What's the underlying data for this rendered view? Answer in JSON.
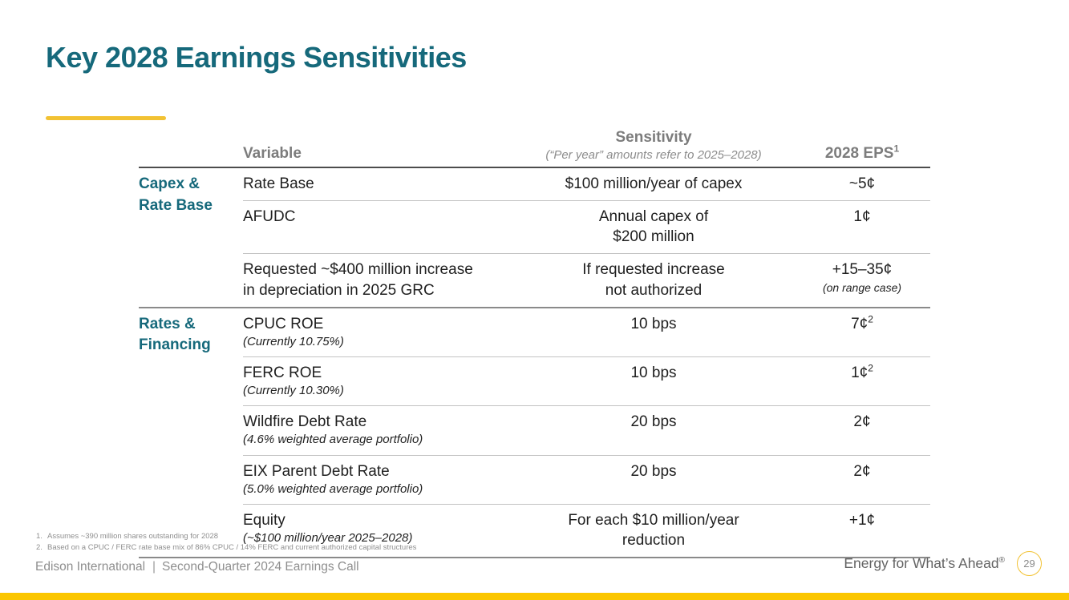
{
  "slide": {
    "title": "Key 2028 Earnings Sensitivities",
    "colors": {
      "teal": "#16697B",
      "gold": "#FBC600",
      "accent": "#F2C233"
    }
  },
  "table": {
    "header": {
      "variable": "Variable",
      "sensitivity": "Sensitivity",
      "sensitivity_note": "(“Per year” amounts refer to 2025–2028)",
      "eps": "2028 EPS",
      "eps_sup": "1"
    },
    "groups": [
      {
        "lines": [
          "Capex &",
          "Rate Base"
        ]
      },
      {
        "lines": [
          "Rates &",
          "Financing"
        ]
      }
    ],
    "rows": [
      {
        "variable_lines": [
          "Rate Base"
        ],
        "note": "",
        "sensitivity_lines": [
          "$100 million/year of capex"
        ],
        "eps": "~5¢",
        "eps_sup": "",
        "eps_note": ""
      },
      {
        "variable_lines": [
          "AFUDC"
        ],
        "note": "",
        "sensitivity_lines": [
          "Annual capex of",
          "$200 million"
        ],
        "eps": "1¢",
        "eps_sup": "",
        "eps_note": ""
      },
      {
        "variable_lines": [
          "Requested ~$400 million increase",
          "in depreciation in 2025 GRC"
        ],
        "note": "",
        "sensitivity_lines": [
          "If requested increase",
          "not authorized"
        ],
        "eps": "+15–35¢",
        "eps_sup": "",
        "eps_note": "(on range case)"
      },
      {
        "variable_lines": [
          "CPUC ROE"
        ],
        "note": "(Currently 10.75%)",
        "sensitivity_lines": [
          "10 bps"
        ],
        "eps": "7¢",
        "eps_sup": "2",
        "eps_note": ""
      },
      {
        "variable_lines": [
          "FERC ROE"
        ],
        "note": "(Currently 10.30%)",
        "sensitivity_lines": [
          "10 bps"
        ],
        "eps": "1¢",
        "eps_sup": "2",
        "eps_note": ""
      },
      {
        "variable_lines": [
          "Wildfire Debt Rate"
        ],
        "note": "(4.6% weighted average portfolio)",
        "sensitivity_lines": [
          "20 bps"
        ],
        "eps": "2¢",
        "eps_sup": "",
        "eps_note": ""
      },
      {
        "variable_lines": [
          "EIX Parent Debt Rate"
        ],
        "note": "(5.0% weighted average portfolio)",
        "sensitivity_lines": [
          "20 bps"
        ],
        "eps": "2¢",
        "eps_sup": "",
        "eps_note": ""
      },
      {
        "variable_lines": [
          "Equity"
        ],
        "note": "(~$100 million/year 2025–2028)",
        "sensitivity_lines": [
          "For each $10 million/year",
          "reduction"
        ],
        "eps": "+1¢",
        "eps_sup": "",
        "eps_note": ""
      }
    ]
  },
  "footnotes": [
    {
      "num": "1.",
      "text": "Assumes ~390 million shares outstanding for 2028"
    },
    {
      "num": "2.",
      "text": "Based on a CPUC / FERC rate base mix of 86% CPUC / 14% FERC and current authorized capital structures"
    }
  ],
  "footer": {
    "company": "Edison International",
    "divider": "|",
    "event": "Second-Quarter 2024 Earnings Call",
    "tagline": "Energy for What’s Ahead",
    "tagline_sup": "®",
    "page_number": "29"
  }
}
